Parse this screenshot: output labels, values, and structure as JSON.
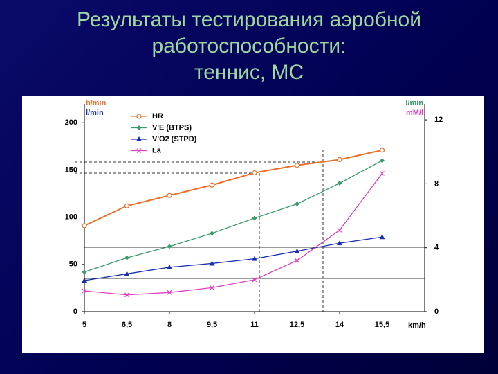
{
  "chart_data": {
    "type": "line",
    "title": [
      "Результаты тестирования аэробной",
      "работоспособности:",
      "теннис, МС"
    ],
    "ylabel": [
      "b/min",
      "l/min"
    ],
    "y2label": [
      "l/min",
      "mM/l"
    ],
    "xlabel": "km/h",
    "x": [
      5,
      6.5,
      8,
      9.5,
      11,
      12.5,
      14,
      15.5
    ],
    "xlim": [
      5,
      17
    ],
    "xticks": [
      5,
      {
        "value": 6.5,
        "label": "6,5"
      },
      8,
      {
        "value": 9.5,
        "label": "9,5"
      },
      11,
      {
        "value": 12.5,
        "label": "12,5"
      },
      14,
      {
        "value": 15.5,
        "label": "15,5"
      }
    ],
    "ylim": [
      0,
      220
    ],
    "yticks": [
      0,
      50,
      100,
      150,
      200
    ],
    "y2lim": [
      0,
      13
    ],
    "y2ticks": [
      0,
      4,
      8,
      12
    ],
    "series": [
      {
        "name": "HR",
        "color": "#e8702a",
        "marker": "circle",
        "values": [
          91,
          112,
          123,
          134,
          147,
          155,
          161,
          171
        ]
      },
      {
        "name": "V'E (BTPS)",
        "color": "#3a9a6a",
        "marker": "diamond",
        "values": [
          42,
          57,
          69,
          83,
          99,
          114,
          136,
          160
        ]
      },
      {
        "name": "V'O2 (STPD)",
        "color": "#1a2fb0",
        "marker": "triangle",
        "values": [
          33,
          40,
          47,
          51,
          56,
          64,
          72.5,
          79
        ]
      },
      {
        "name": "La",
        "color": "#e040c0",
        "marker": "x",
        "axis": "y2",
        "values": [
          1.3,
          1.05,
          1.2,
          1.5,
          2.0,
          3.2,
          5.1,
          8.65
        ]
      }
    ]
  }
}
